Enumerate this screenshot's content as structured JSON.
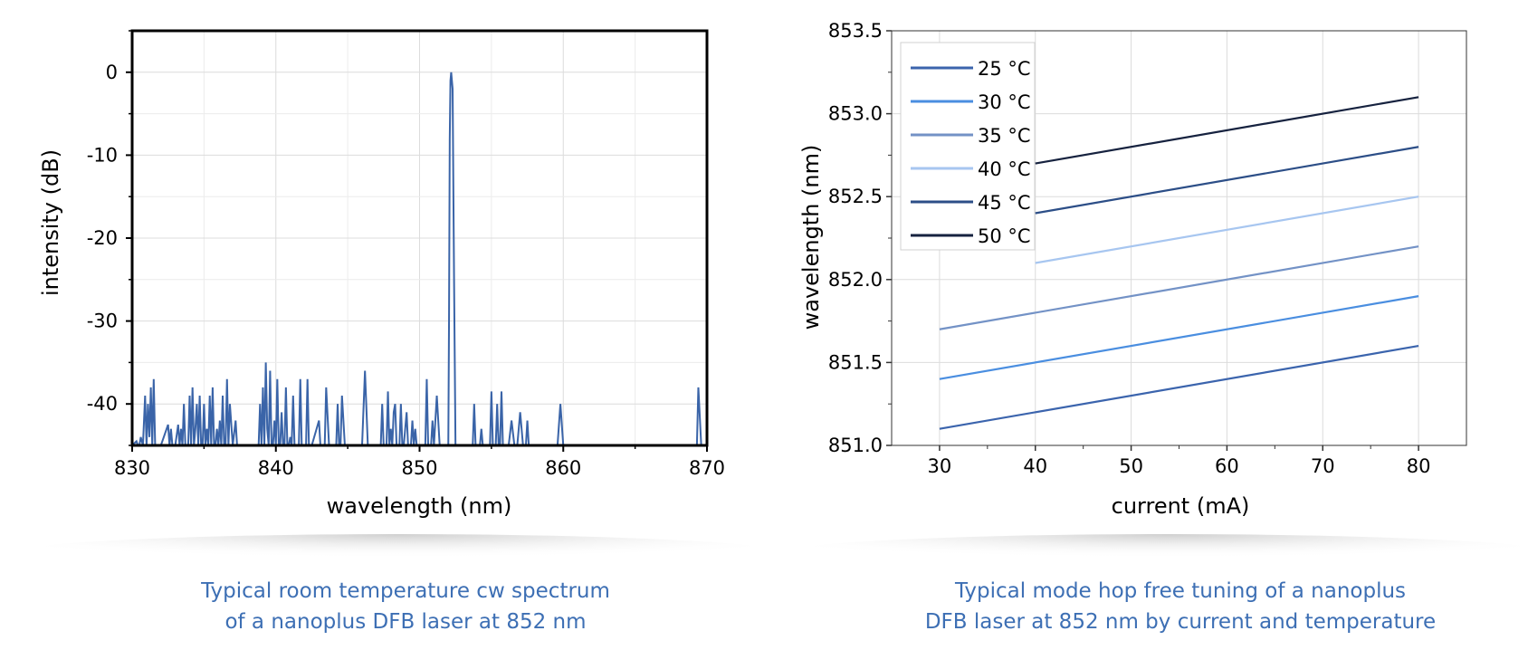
{
  "chart_data": [
    {
      "type": "line",
      "xlabel": "wavelength (nm)",
      "ylabel": "intensity (dB)",
      "xlim": [
        830,
        870
      ],
      "ylim": [
        -45,
        5
      ],
      "xticks": [
        830,
        840,
        850,
        860,
        870
      ],
      "xtick_labels": [
        "830",
        "840",
        "850",
        "860",
        "870"
      ],
      "yticks": [
        0,
        -10,
        -20,
        -30,
        -40
      ],
      "ytick_labels": [
        "0",
        "-10",
        "-20",
        "-30",
        "-40"
      ],
      "grid": true,
      "color": "#3a64a8",
      "series": [
        {
          "x": [
            830.0,
            830.3,
            830.4,
            830.5,
            830.6,
            830.75,
            830.9,
            831.0,
            831.1,
            831.2,
            831.3,
            831.4,
            831.5,
            831.6,
            831.7,
            831.8,
            832.0,
            832.5,
            832.6,
            832.7,
            832.8,
            832.9,
            833.0,
            833.2,
            833.3,
            833.4,
            833.5,
            833.6,
            833.7,
            833.8,
            833.9,
            834.0,
            834.1,
            834.2,
            834.3,
            834.4,
            834.5,
            834.6,
            834.7,
            834.8,
            834.9,
            835.0,
            835.1,
            835.2,
            835.3,
            835.4,
            835.5,
            835.6,
            835.7,
            835.8,
            835.9,
            836.0,
            836.1,
            836.2,
            836.3,
            836.4,
            836.5,
            836.6,
            836.7,
            836.8,
            837.0,
            837.2,
            837.3,
            837.4,
            837.5,
            838.0,
            838.2,
            838.4,
            838.6,
            838.8,
            838.9,
            839.0,
            839.1,
            839.2,
            839.3,
            839.4,
            839.5,
            839.6,
            839.7,
            839.8,
            839.9,
            840.0,
            840.1,
            840.2,
            840.3,
            840.4,
            840.5,
            840.6,
            840.7,
            840.8,
            840.9,
            841.0,
            841.1,
            841.2,
            841.3,
            841.4,
            841.5,
            841.6,
            841.7,
            841.8,
            841.9,
            842.0,
            842.1,
            842.2,
            842.3,
            842.4,
            842.5,
            843.0,
            843.1,
            843.2,
            843.3,
            843.4,
            843.5,
            843.7,
            843.8,
            843.9,
            844.0,
            844.1,
            844.2,
            844.3,
            844.4,
            844.5,
            844.6,
            844.8,
            845.0,
            845.3,
            845.5,
            845.7,
            846.0,
            846.2,
            846.4,
            846.6,
            846.8,
            847.0,
            847.1,
            847.2,
            847.3,
            847.4,
            847.5,
            847.6,
            847.7,
            847.8,
            847.9,
            848.0,
            848.1,
            848.2,
            848.3,
            848.4,
            848.5,
            848.6,
            848.7,
            848.8,
            848.9,
            849.0,
            849.1,
            849.2,
            849.3,
            849.4,
            849.5,
            849.6,
            849.7,
            849.8,
            849.9,
            850.0,
            850.1,
            850.2,
            850.3,
            850.4,
            850.5,
            850.6,
            850.7,
            850.8,
            850.9,
            851.0,
            851.2,
            851.4,
            851.6,
            851.8,
            851.9,
            852.0,
            852.05,
            852.1,
            852.15,
            852.2,
            852.3,
            852.4,
            852.5,
            852.6,
            852.7,
            852.8,
            853.0,
            853.3,
            853.4,
            853.5,
            853.6,
            853.7,
            853.8,
            853.9,
            854.0,
            854.1,
            854.2,
            854.3,
            854.4,
            854.5,
            854.6,
            854.7,
            854.8,
            854.9,
            855.0,
            855.1,
            855.2,
            855.3,
            855.4,
            855.5,
            855.6,
            855.7,
            855.8,
            855.9,
            856.0,
            856.2,
            856.4,
            856.6,
            856.8,
            857.0,
            857.2,
            857.4,
            857.5,
            857.6,
            857.7,
            857.8,
            857.9,
            858.0,
            858.2,
            858.4,
            858.6,
            858.8,
            859.0,
            859.2,
            859.4,
            859.6,
            859.8,
            860.0,
            860.2,
            860.4,
            860.6,
            860.8,
            861.0,
            861.2,
            861.4,
            861.6,
            861.8,
            862.0,
            862.2,
            862.4,
            862.6,
            862.8,
            863.0,
            863.2,
            863.4,
            863.6,
            863.8,
            864.0,
            864.2,
            864.4,
            864.6,
            864.8,
            865.0,
            865.2,
            865.4,
            865.6,
            865.8,
            866.0,
            866.2,
            866.4,
            866.6,
            866.8,
            867.0,
            867.2,
            867.4,
            867.6,
            867.8,
            868.0,
            868.2,
            868.4,
            868.6,
            868.8,
            869.0,
            869.2,
            869.3,
            869.4,
            869.6,
            869.8,
            870.0
          ],
          "y": [
            -45,
            -44.5,
            -45,
            -45,
            -44,
            -45,
            -39,
            -45,
            -40,
            -44,
            -38,
            -45,
            -37,
            -45,
            -45,
            -45,
            -45,
            -42.5,
            -45,
            -43,
            -45,
            -45,
            -45,
            -42.5,
            -45,
            -43,
            -45,
            -40,
            -45,
            -45,
            -45,
            -39,
            -45,
            -38,
            -45,
            -43,
            -40,
            -45,
            -39,
            -45,
            -45,
            -40,
            -45,
            -43,
            -45,
            -39,
            -45,
            -38,
            -45,
            -45,
            -43,
            -45,
            -42,
            -45,
            -39,
            -45,
            -45,
            -37,
            -45,
            -40,
            -45,
            -42,
            -45,
            -45,
            -45,
            -45,
            -45,
            -45,
            -45,
            -45,
            -40,
            -45,
            -38,
            -45,
            -35,
            -43,
            -45,
            -36,
            -45,
            -45,
            -42,
            -45,
            -37,
            -45,
            -45,
            -41,
            -45,
            -45,
            -38,
            -45,
            -45,
            -44,
            -45,
            -39,
            -45,
            -45,
            -45,
            -45,
            -37,
            -45,
            -45,
            -45,
            -45,
            -37,
            -45,
            -45,
            -45,
            -42,
            -45,
            -45,
            -45,
            -45,
            -38,
            -45,
            -45,
            -45,
            -45,
            -45,
            -45,
            -40,
            -45,
            -45,
            -39,
            -45,
            -45,
            -45,
            -45,
            -45,
            -45,
            -36,
            -45,
            -45,
            -45,
            -45,
            -45,
            -45,
            -45,
            -40,
            -45,
            -45,
            -45,
            -38.5,
            -45,
            -43,
            -45,
            -41,
            -40,
            -45,
            -45,
            -45,
            -40,
            -45,
            -45,
            -43,
            -41,
            -45,
            -45,
            -45,
            -42,
            -45,
            -43,
            -45,
            -45,
            -45,
            -45,
            -45,
            -45,
            -45,
            -37,
            -45,
            -45,
            -45,
            -42,
            -45,
            -39,
            -45,
            -45,
            -45,
            -45,
            -45,
            -30,
            -8,
            -1,
            0,
            -2,
            -25,
            -45,
            -45,
            -45,
            -45,
            -45,
            -45,
            -45,
            -45,
            -45,
            -45,
            -40,
            -45,
            -45,
            -45,
            -45,
            -43,
            -45,
            -45,
            -45,
            -45,
            -45,
            -45,
            -38.5,
            -45,
            -45,
            -45,
            -40,
            -45,
            -45,
            -38.5,
            -45,
            -45,
            -45,
            -45,
            -42,
            -45,
            -45,
            -41,
            -45,
            -45,
            -42,
            -45,
            -45,
            -45,
            -45,
            -45,
            -45,
            -45,
            -45,
            -45,
            -45,
            -45,
            -45,
            -45,
            -40,
            -45,
            -45,
            -45,
            -45,
            -45,
            -45,
            -45,
            -45,
            -45,
            -45,
            -45,
            -45,
            -45,
            -45,
            -45,
            -45,
            -45,
            -45,
            -45,
            -45,
            -45,
            -45,
            -45,
            -45,
            -45,
            -45,
            -45,
            -45,
            -45,
            -45,
            -45,
            -45,
            -45,
            -45,
            -45,
            -45,
            -45,
            -45,
            -45,
            -45,
            -45,
            -45,
            -45,
            -45,
            -45,
            -45,
            -45,
            -45,
            -38,
            -45,
            -45,
            -45
          ]
        }
      ]
    },
    {
      "type": "line",
      "xlabel": "current (mA)",
      "ylabel": "wavelength (nm)",
      "xlim": [
        25,
        85
      ],
      "ylim": [
        851.0,
        853.5
      ],
      "xticks": [
        30,
        40,
        50,
        60,
        70,
        80
      ],
      "xtick_labels": [
        "30",
        "40",
        "50",
        "60",
        "70",
        "80"
      ],
      "yticks": [
        851.0,
        851.5,
        852.0,
        852.5,
        853.0,
        853.5
      ],
      "ytick_labels": [
        "851.0",
        "851.5",
        "852.0",
        "852.5",
        "853.0",
        "853.5"
      ],
      "grid": true,
      "legend": "top-left",
      "series": [
        {
          "name": "25 °C",
          "color": "#3b64ad",
          "x": [
            30,
            80
          ],
          "y": [
            851.1,
            851.6
          ]
        },
        {
          "name": "30 °C",
          "color": "#4a8ee0",
          "x": [
            30,
            80
          ],
          "y": [
            851.4,
            851.9
          ]
        },
        {
          "name": "35 °C",
          "color": "#7392c6",
          "x": [
            30,
            80
          ],
          "y": [
            851.7,
            852.2
          ]
        },
        {
          "name": "40 °C",
          "color": "#a7c6f0",
          "x": [
            40,
            80
          ],
          "y": [
            852.1,
            852.5
          ]
        },
        {
          "name": "45 °C",
          "color": "#2c4e87",
          "x": [
            40,
            80
          ],
          "y": [
            852.4,
            852.8
          ]
        },
        {
          "name": "50 °C",
          "color": "#16223f",
          "x": [
            40,
            80
          ],
          "y": [
            852.7,
            853.1
          ]
        }
      ]
    }
  ],
  "captions": [
    {
      "line1": "Typical room temperature cw spectrum",
      "line2": "of a nanoplus DFB laser at 852 nm"
    },
    {
      "line1": "Typical mode hop free tuning of a nanoplus",
      "line2": "DFB laser at 852 nm by current and temperature"
    }
  ],
  "colors": {
    "caption": "#3d6fb4",
    "spectrum_line": "#3a64a8"
  }
}
